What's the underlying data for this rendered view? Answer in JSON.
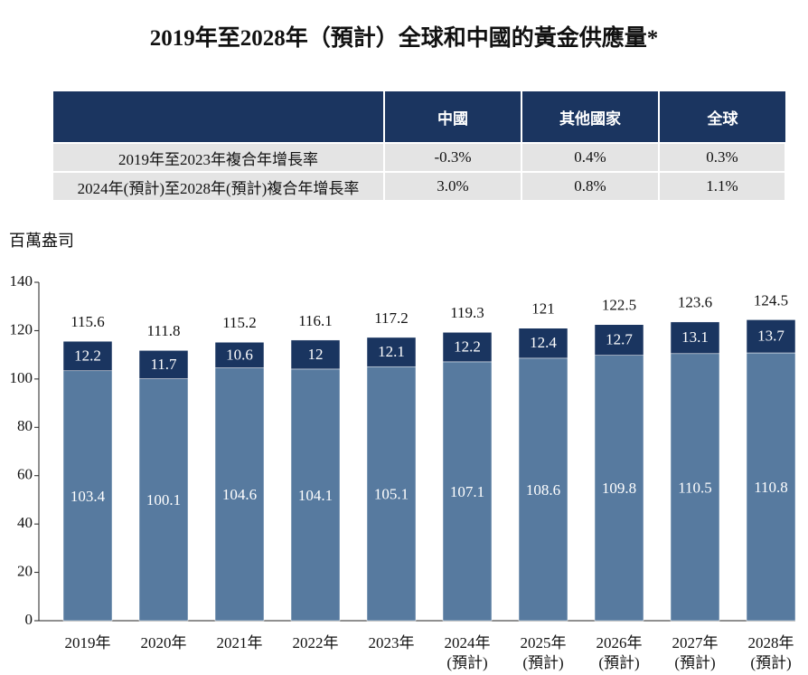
{
  "title": "2019年至2028年（預計）全球和中國的黃金供應量*",
  "table": {
    "header": [
      "中國",
      "其他國家",
      "全球"
    ],
    "rows": [
      [
        "2019年至2023年複合年增長率",
        "-0.3%",
        "0.4%",
        "0.3%"
      ],
      [
        "2024年(預計)至2028年(預計)複合年增長率",
        "3.0%",
        "0.8%",
        "1.1%"
      ]
    ]
  },
  "chart_data": {
    "type": "stacked_bar",
    "y_label": "百萬盎司",
    "categories": [
      "2019年",
      "2020年",
      "2021年",
      "2022年",
      "2023年",
      "2024年\n(預計)",
      "2025年\n(預計)",
      "2026年\n(預計)",
      "2027年\n(預計)",
      "2028年\n(預計)"
    ],
    "series": [
      {
        "color": "#577a9f",
        "values": [
          103.4,
          100.1,
          104.6,
          104.1,
          105.1,
          107.1,
          108.6,
          109.8,
          110.5,
          110.8
        ]
      },
      {
        "color": "#1a3560",
        "values": [
          12.2,
          11.7,
          10.6,
          12.0,
          12.1,
          12.2,
          12.4,
          12.7,
          13.1,
          13.7
        ]
      }
    ],
    "totals": [
      115.6,
      111.8,
      115.2,
      116.1,
      117.2,
      119.3,
      121.0,
      122.5,
      123.6,
      124.5
    ],
    "ylim": [
      0,
      140
    ],
    "yticks": [
      0,
      20,
      40,
      60,
      80,
      100,
      120,
      140
    ]
  }
}
